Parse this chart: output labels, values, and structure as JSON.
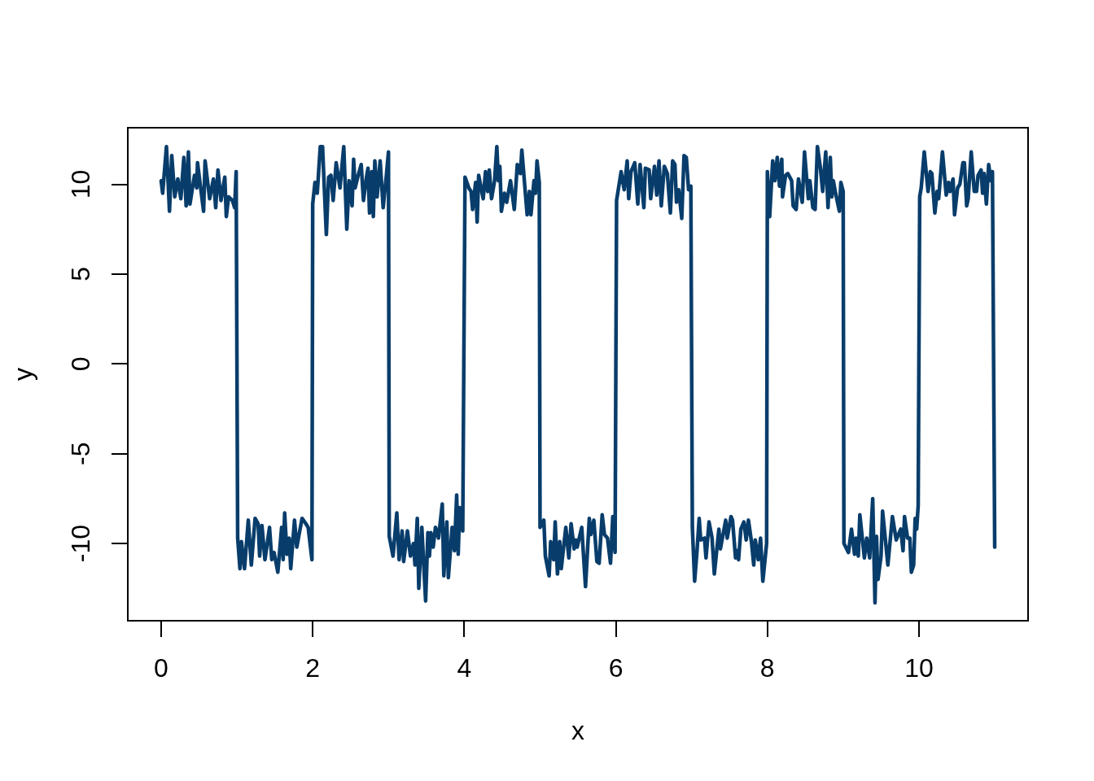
{
  "chart_data": {
    "type": "line",
    "xlabel": "x",
    "ylabel": "y",
    "color": "#083d6b",
    "line_style": "solid",
    "xlim": [
      -0.44,
      11.44
    ],
    "ylim": [
      -14.3,
      13.15
    ],
    "xticks": [
      0,
      2,
      4,
      6,
      8,
      10
    ],
    "yticks": [
      -10,
      -5,
      0,
      5,
      10
    ],
    "x": [
      0,
      0.02,
      0.07,
      0.11,
      0.14,
      0.18,
      0.22,
      0.26,
      0.3,
      0.33,
      0.36,
      0.38,
      0.44,
      0.47,
      0.48,
      0.56,
      0.58,
      0.64,
      0.69,
      0.72,
      0.75,
      0.79,
      0.84,
      0.86,
      0.89,
      0.94,
      0.97,
      0.99,
      1.01,
      1.04,
      1.06,
      1.1,
      1.15,
      1.19,
      1.24,
      1.28,
      1.3,
      1.33,
      1.37,
      1.43,
      1.46,
      1.49,
      1.54,
      1.59,
      1.61,
      1.63,
      1.66,
      1.69,
      1.71,
      1.76,
      1.79,
      1.82,
      1.86,
      1.91,
      1.94,
      1.99,
      2,
      2.03,
      2.06,
      2.1,
      2.13,
      2.15,
      2.18,
      2.21,
      2.24,
      2.27,
      2.31,
      2.36,
      2.41,
      2.45,
      2.48,
      2.52,
      2.54,
      2.56,
      2.6,
      2.64,
      2.67,
      2.71,
      2.73,
      2.75,
      2.78,
      2.8,
      2.82,
      2.85,
      2.89,
      2.93,
      2.97,
      3,
      3.01,
      3.06,
      3.11,
      3.14,
      3.18,
      3.2,
      3.25,
      3.29,
      3.33,
      3.35,
      3.38,
      3.4,
      3.44,
      3.49,
      3.52,
      3.54,
      3.56,
      3.59,
      3.62,
      3.66,
      3.71,
      3.73,
      3.77,
      3.79,
      3.84,
      3.87,
      3.9,
      3.92,
      3.94,
      3.98,
      4.01,
      4.06,
      4.09,
      4.11,
      4.15,
      4.17,
      4.19,
      4.25,
      4.28,
      4.31,
      4.33,
      4.36,
      4.4,
      4.43,
      4.45,
      4.47,
      4.49,
      4.53,
      4.56,
      4.61,
      4.66,
      4.7,
      4.74,
      4.76,
      4.83,
      4.86,
      4.88,
      4.92,
      4.94,
      4.96,
      4.99,
      5,
      5.05,
      5.07,
      5.12,
      5.14,
      5.18,
      5.2,
      5.23,
      5.26,
      5.28,
      5.34,
      5.38,
      5.41,
      5.45,
      5.47,
      5.49,
      5.55,
      5.6,
      5.65,
      5.67,
      5.71,
      5.75,
      5.78,
      5.82,
      5.85,
      5.89,
      5.93,
      5.96,
      5.99,
      6.01,
      6.07,
      6.11,
      6.15,
      6.17,
      6.2,
      6.25,
      6.29,
      6.32,
      6.37,
      6.39,
      6.44,
      6.46,
      6.51,
      6.54,
      6.57,
      6.6,
      6.64,
      6.68,
      6.72,
      6.75,
      6.78,
      6.8,
      6.83,
      6.87,
      6.9,
      6.93,
      6.96,
      6.99,
      7.01,
      7.04,
      7.07,
      7.1,
      7.12,
      7.17,
      7.19,
      7.23,
      7.27,
      7.3,
      7.36,
      7.38,
      7.45,
      7.47,
      7.52,
      7.54,
      7.58,
      7.6,
      7.62,
      7.65,
      7.69,
      7.72,
      7.75,
      7.79,
      7.82,
      7.84,
      7.88,
      7.91,
      7.94,
      7.99,
      8,
      8.03,
      8.07,
      8.1,
      8.13,
      8.16,
      8.19,
      8.2,
      8.24,
      8.27,
      8.32,
      8.34,
      8.38,
      8.41,
      8.46,
      8.49,
      8.54,
      8.56,
      8.6,
      8.63,
      8.66,
      8.7,
      8.73,
      8.77,
      8.8,
      8.83,
      8.85,
      8.87,
      8.9,
      8.95,
      8.97,
      9,
      9.01,
      9.07,
      9.11,
      9.15,
      9.17,
      9.2,
      9.22,
      9.28,
      9.31,
      9.35,
      9.39,
      9.42,
      9.44,
      9.46,
      9.5,
      9.52,
      9.59,
      9.65,
      9.7,
      9.76,
      9.79,
      9.81,
      9.85,
      9.88,
      9.9,
      9.93,
      9.95,
      9.97,
      9.99,
      10.01,
      10.03,
      10.07,
      10.12,
      10.15,
      10.17,
      10.21,
      10.24,
      10.26,
      10.31,
      10.36,
      10.39,
      10.41,
      10.45,
      10.47,
      10.51,
      10.54,
      10.58,
      10.6,
      10.63,
      10.65,
      10.69,
      10.73,
      10.76,
      10.78,
      10.82,
      10.84,
      10.86,
      10.89,
      10.92,
      10.95,
      10.97,
      11
    ],
    "values": [
      10.2,
      9.5,
      12.1,
      8.5,
      11.6,
      9.3,
      10.3,
      9.2,
      11.5,
      8.8,
      11.8,
      8.9,
      10.5,
      9.8,
      11.2,
      8.5,
      11.3,
      9.2,
      10.3,
      8.7,
      10.8,
      9.1,
      10.4,
      8.2,
      9.3,
      9.1,
      8.7,
      10.7,
      -9.7,
      -11.4,
      -9.9,
      -11.4,
      -8.7,
      -11.2,
      -8.6,
      -8.9,
      -10.7,
      -9.0,
      -10.9,
      -9.1,
      -10.9,
      -10.5,
      -11.6,
      -9.1,
      -10.9,
      -8.3,
      -10.6,
      -9.7,
      -11.4,
      -8.7,
      -10.2,
      -9.5,
      -8.6,
      -8.9,
      -9.1,
      -10.9,
      8.9,
      10.1,
      9.5,
      12.1,
      12.1,
      10.1,
      7.2,
      10.4,
      10.5,
      9.1,
      11.2,
      9.8,
      12.1,
      7.5,
      10.2,
      8.8,
      11.4,
      9.8,
      10.5,
      11.1,
      9.1,
      10.4,
      10.9,
      8.4,
      10.7,
      8.2,
      11.3,
      9.3,
      11.3,
      8.7,
      10.4,
      11.8,
      -9.6,
      -10.7,
      -8.3,
      -10.9,
      -9.3,
      -11.0,
      -9.3,
      -10.7,
      -10.0,
      -11.2,
      -8.6,
      -12.5,
      -9.1,
      -13.2,
      -9.4,
      -10.7,
      -9.4,
      -10.2,
      -9.1,
      -9.7,
      -7.8,
      -11.8,
      -8.8,
      -11.9,
      -9.1,
      -10.4,
      -7.3,
      -10.6,
      -8.0,
      -9.3,
      10.4,
      9.8,
      9.6,
      8.6,
      10.1,
      7.9,
      10.5,
      9.2,
      10.7,
      9.6,
      10.8,
      9.2,
      10.2,
      12.1,
      10.2,
      11.0,
      8.5,
      9.5,
      9.0,
      10.2,
      8.6,
      11.1,
      10.6,
      11.9,
      8.3,
      9.6,
      8.3,
      10.2,
      9.5,
      11.3,
      10.1,
      -9.1,
      -8.7,
      -10.7,
      -11.8,
      -9.9,
      -10.9,
      -8.8,
      -11.7,
      -9.9,
      -11.4,
      -9.1,
      -10.8,
      -8.9,
      -10.3,
      -9.8,
      -10.2,
      -9.1,
      -12.4,
      -8.6,
      -9.5,
      -8.7,
      -11.0,
      -11.1,
      -8.4,
      -9.5,
      -9.7,
      -11.1,
      -8.5,
      -10.5,
      9.1,
      10.7,
      9.7,
      11.3,
      9.2,
      10.7,
      11.2,
      8.9,
      11.1,
      8.7,
      10.9,
      10.8,
      9.2,
      11.0,
      9.4,
      11.3,
      8.8,
      11.0,
      10.6,
      8.4,
      11.3,
      11.1,
      9.0,
      9.7,
      8.1,
      11.6,
      11.5,
      9.7,
      9.9,
      -9.1,
      -12.1,
      -10.5,
      -8.6,
      -9.8,
      -9.7,
      -10.8,
      -8.8,
      -9.7,
      -11.7,
      -9.2,
      -10.3,
      -8.7,
      -9.7,
      -8.5,
      -8.7,
      -10.8,
      -10.4,
      -10.9,
      -9.2,
      -8.8,
      -9.8,
      -8.7,
      -9.9,
      -11.2,
      -9.8,
      -10.9,
      -9.7,
      -12.1,
      -10.0,
      10.7,
      8.2,
      11.3,
      10.2,
      11.5,
      9.9,
      11.4,
      9.3,
      10.5,
      10.6,
      10.2,
      8.8,
      8.6,
      10.3,
      9.0,
      11.8,
      9.2,
      10.2,
      8.7,
      8.6,
      12.1,
      10.9,
      9.6,
      11.8,
      8.7,
      11.5,
      9.3,
      10.2,
      9.5,
      8.5,
      10.1,
      9.6,
      -10.0,
      -10.5,
      -9.2,
      -10.6,
      -9.7,
      -10.7,
      -8.4,
      -10.8,
      -9.7,
      -10.8,
      -7.5,
      -13.3,
      -9.6,
      -12.0,
      -10.7,
      -8.2,
      -11.2,
      -8.5,
      -9.8,
      -9.2,
      -10.4,
      -8.5,
      -9.7,
      -9.7,
      -11.6,
      -11.2,
      -8.6,
      -9.2,
      -7.9,
      9.3,
      9.8,
      11.8,
      9.6,
      10.7,
      10.6,
      8.4,
      9.6,
      9.2,
      11.8,
      9.4,
      10.1,
      9.6,
      10.3,
      8.3,
      9.8,
      10.0,
      11.2,
      11.2,
      8.8,
      9.2,
      11.8,
      9.6,
      9.6,
      10.5,
      10.8,
      9.5,
      10.6,
      8.9,
      11.1,
      10.2,
      10.7,
      -10.2
    ]
  }
}
